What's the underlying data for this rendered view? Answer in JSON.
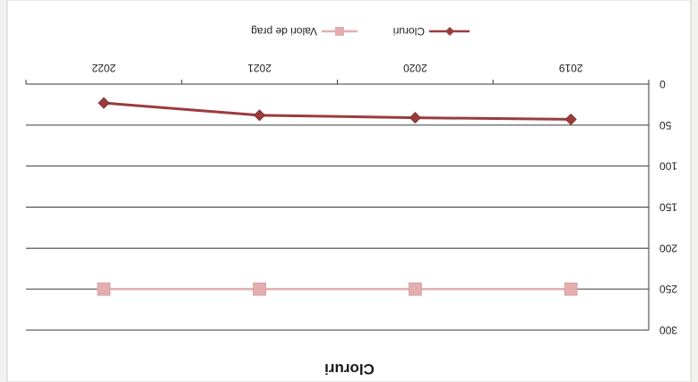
{
  "chart_data": {
    "type": "line",
    "title": "Cloruri",
    "categories": [
      "2019",
      "2020",
      "2021",
      "2022"
    ],
    "ylim": [
      0,
      300
    ],
    "yticks": [
      0,
      50,
      100,
      150,
      200,
      250,
      300
    ],
    "grid": true,
    "legend_position": "bottom",
    "series": [
      {
        "name": "Cloruri",
        "values": [
          43,
          41,
          38,
          23
        ],
        "color": "#9b3c3c",
        "marker": "diamond"
      },
      {
        "name": "Valori de prag",
        "values": [
          250,
          250,
          250,
          250
        ],
        "color": "#e3aeae",
        "marker": "square"
      }
    ]
  }
}
